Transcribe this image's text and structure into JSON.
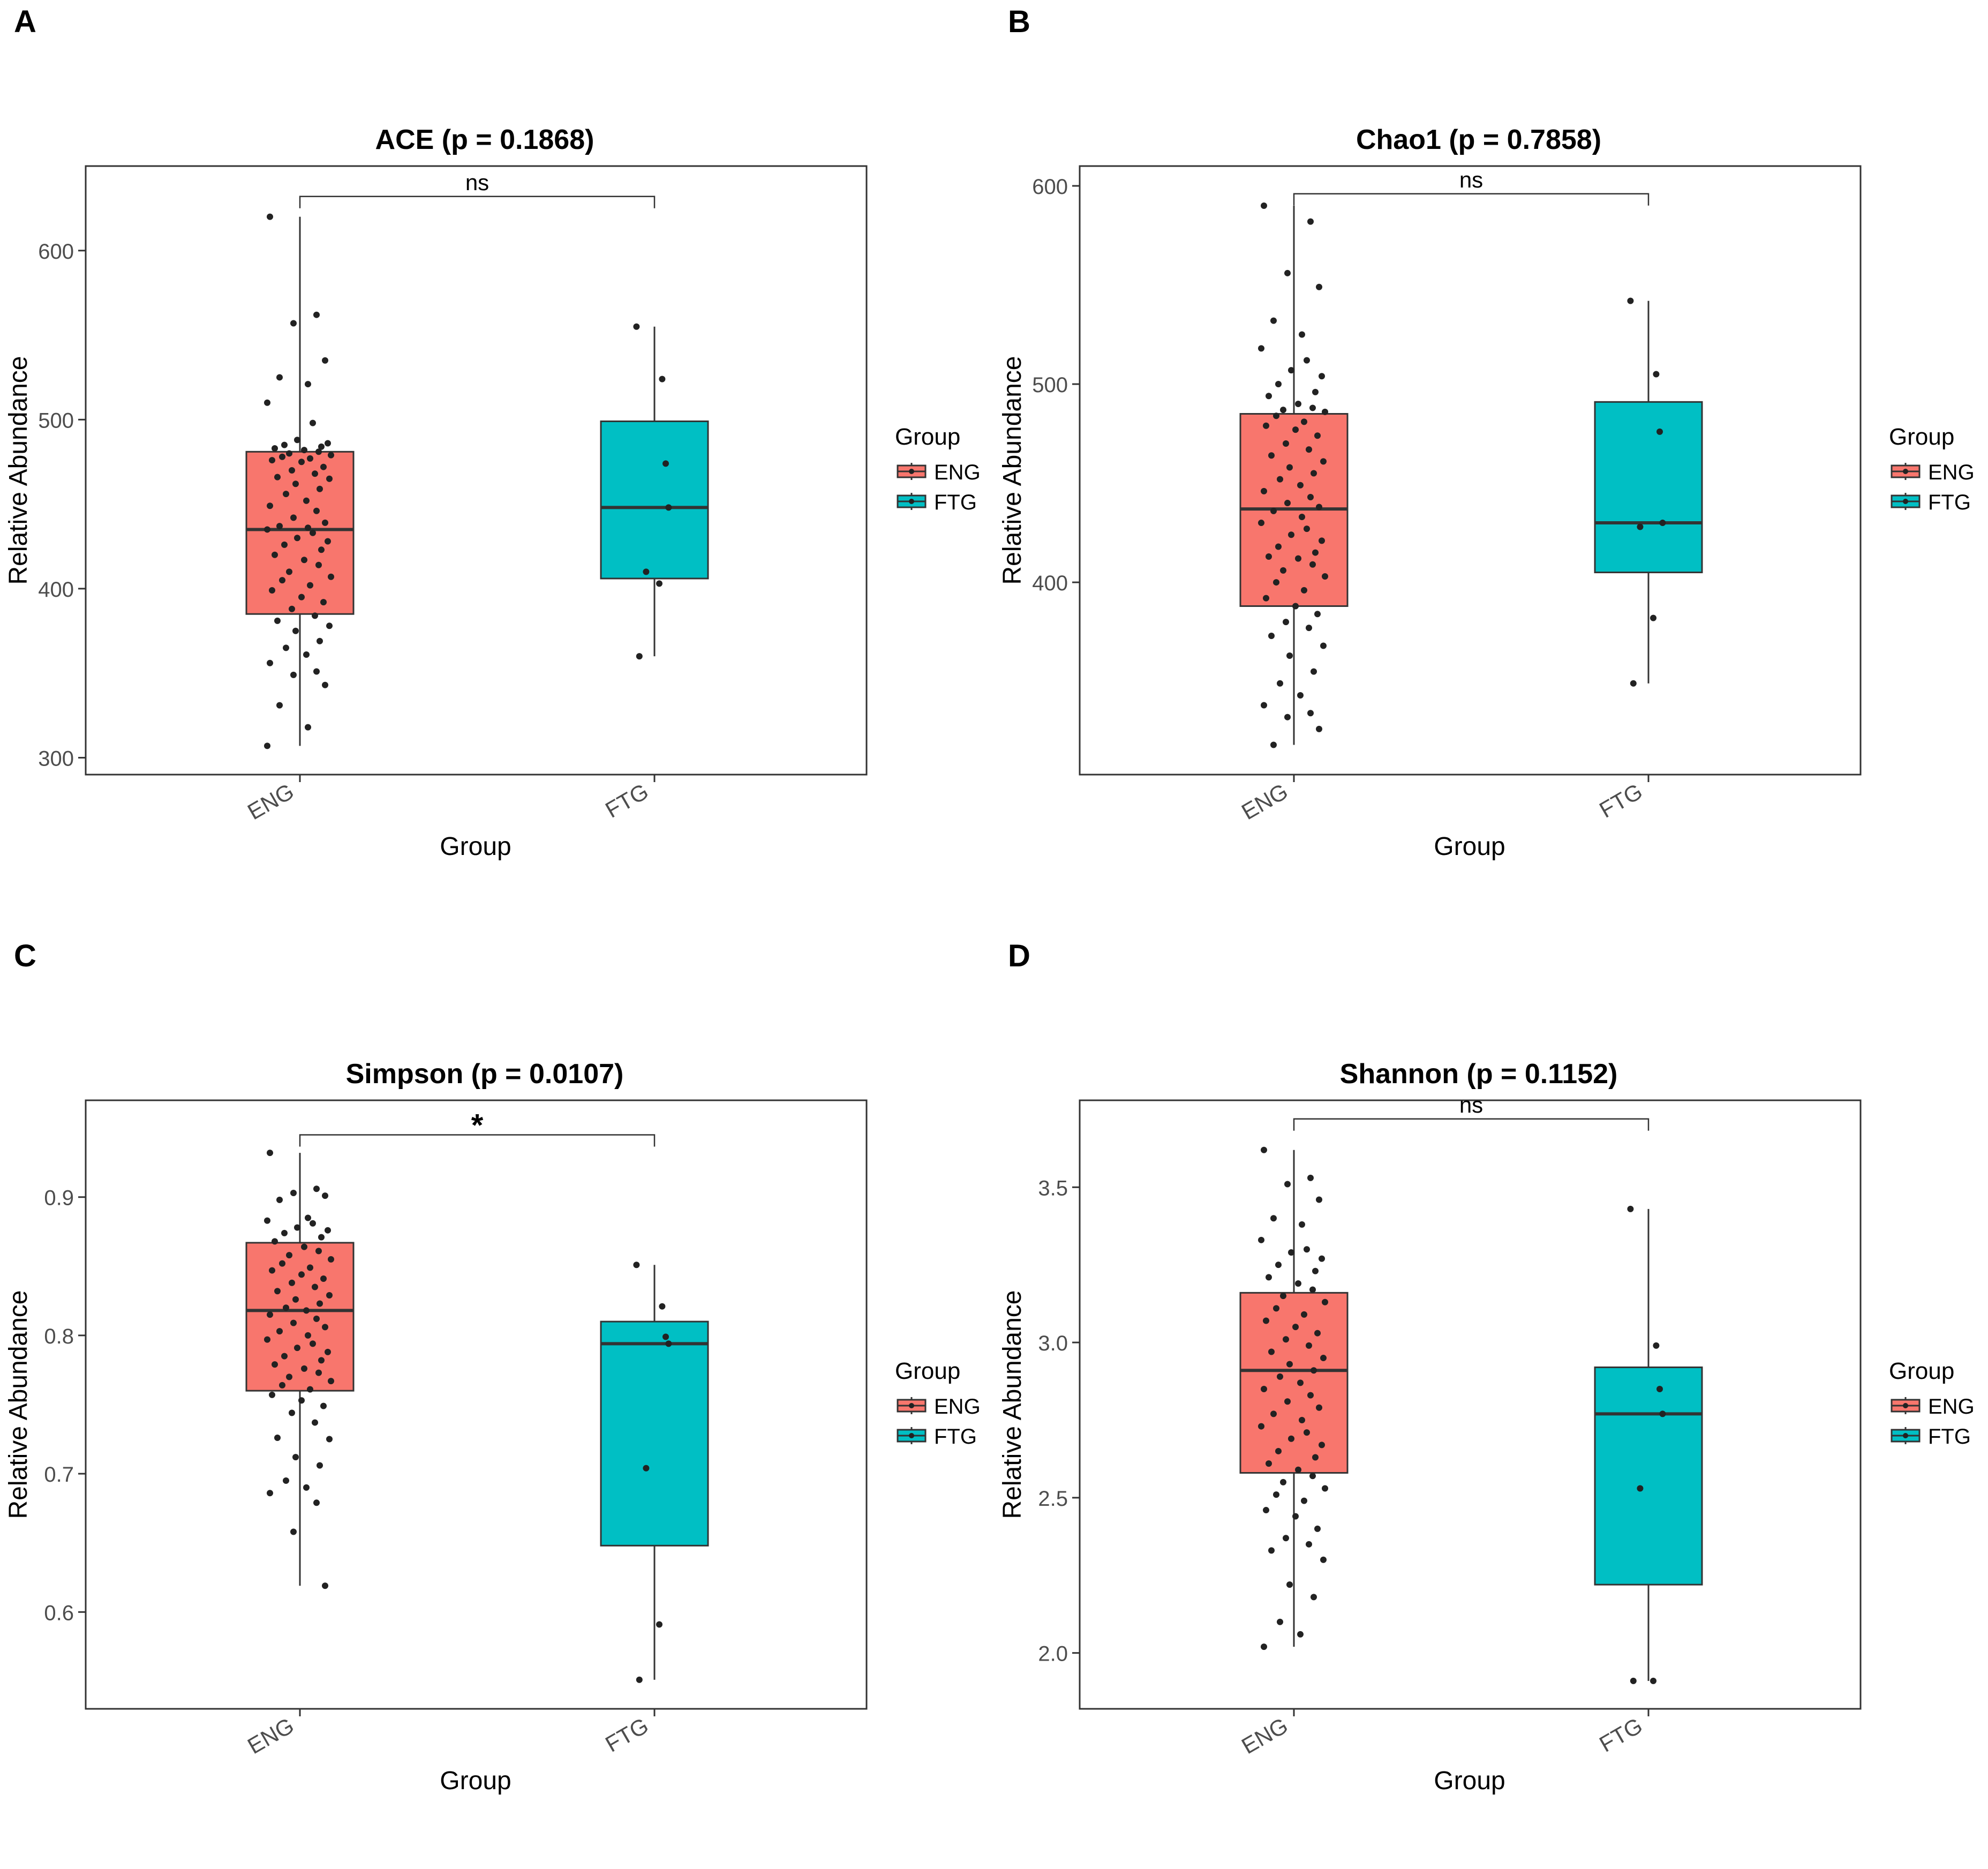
{
  "axis_titles": {
    "x": "Group",
    "y": "Relative Abundance"
  },
  "legend": {
    "title": "Group",
    "entries": [
      {
        "label": "ENG",
        "color": "#F8766D"
      },
      {
        "label": "FTG",
        "color": "#00BFC4"
      }
    ]
  },
  "chart_data": [
    {
      "panel": "A",
      "type": "boxplot",
      "title": "ACE (p = 0.1868)",
      "xlabel": "Group",
      "ylabel": "Relative Abundance",
      "ylim": [
        290,
        650
      ],
      "yticks": [
        300,
        400,
        500,
        600
      ],
      "categories": [
        "ENG",
        "FTG"
      ],
      "significance": "ns",
      "bracket_y": 632,
      "boxes": [
        {
          "group": "ENG",
          "color": "#F8766D",
          "lower_whisker": 307,
          "q1": 385,
          "median": 435,
          "q3": 481,
          "upper_whisker": 620,
          "points": [
            620,
            562,
            557,
            535,
            525,
            521,
            510,
            498,
            488,
            486,
            485,
            484,
            483,
            482,
            481,
            480,
            479,
            478,
            477,
            476,
            475,
            472,
            470,
            468,
            466,
            465,
            462,
            459,
            456,
            452,
            449,
            446,
            442,
            439,
            437,
            436,
            435,
            433,
            430,
            428,
            426,
            423,
            420,
            417,
            414,
            410,
            407,
            405,
            402,
            399,
            395,
            392,
            388,
            384,
            381,
            378,
            375,
            369,
            365,
            361,
            356,
            351,
            349,
            343,
            331,
            318,
            307
          ]
        },
        {
          "group": "FTG",
          "color": "#00BFC4",
          "lower_whisker": 360,
          "q1": 406,
          "median": 448,
          "q3": 499,
          "upper_whisker": 555,
          "points": [
            555,
            524,
            474,
            448,
            410,
            403,
            360
          ]
        }
      ]
    },
    {
      "panel": "B",
      "type": "boxplot",
      "title": "Chao1 (p = 0.7858)",
      "xlabel": "Group",
      "ylabel": "Relative Abundance",
      "ylim": [
        303,
        610
      ],
      "yticks": [
        400,
        500,
        600
      ],
      "categories": [
        "ENG",
        "FTG"
      ],
      "significance": "ns",
      "bracket_y": 596,
      "boxes": [
        {
          "group": "ENG",
          "color": "#F8766D",
          "lower_whisker": 318,
          "q1": 388,
          "median": 437,
          "q3": 485,
          "upper_whisker": 590,
          "points": [
            590,
            582,
            556,
            549,
            532,
            525,
            518,
            512,
            507,
            504,
            500,
            496,
            494,
            490,
            488,
            487,
            486,
            484,
            481,
            479,
            477,
            474,
            470,
            467,
            464,
            461,
            458,
            455,
            452,
            449,
            446,
            443,
            440,
            438,
            436,
            433,
            430,
            427,
            424,
            421,
            418,
            415,
            413,
            412,
            409,
            406,
            403,
            400,
            396,
            392,
            388,
            384,
            380,
            377,
            373,
            368,
            363,
            355,
            349,
            343,
            338,
            334,
            332,
            326,
            318
          ]
        },
        {
          "group": "FTG",
          "color": "#00BFC4",
          "lower_whisker": 349,
          "q1": 405,
          "median": 430,
          "q3": 491,
          "upper_whisker": 542,
          "points": [
            542,
            505,
            476,
            430,
            428,
            382,
            349
          ]
        }
      ]
    },
    {
      "panel": "C",
      "type": "boxplot",
      "title": "Simpson (p = 0.0107)",
      "xlabel": "Group",
      "ylabel": "Relative Abundance",
      "ylim": [
        0.53,
        0.97
      ],
      "yticks": [
        0.6,
        0.7,
        0.8,
        0.9
      ],
      "categories": [
        "ENG",
        "FTG"
      ],
      "significance": "*",
      "bracket_y": 0.945,
      "boxes": [
        {
          "group": "ENG",
          "color": "#F8766D",
          "lower_whisker": 0.619,
          "q1": 0.76,
          "median": 0.818,
          "q3": 0.867,
          "upper_whisker": 0.932,
          "points": [
            0.932,
            0.906,
            0.903,
            0.901,
            0.898,
            0.885,
            0.883,
            0.881,
            0.878,
            0.876,
            0.874,
            0.871,
            0.868,
            0.864,
            0.861,
            0.858,
            0.855,
            0.852,
            0.849,
            0.847,
            0.844,
            0.841,
            0.838,
            0.835,
            0.832,
            0.829,
            0.826,
            0.823,
            0.82,
            0.818,
            0.815,
            0.812,
            0.809,
            0.806,
            0.803,
            0.8,
            0.797,
            0.794,
            0.791,
            0.788,
            0.785,
            0.782,
            0.779,
            0.776,
            0.773,
            0.77,
            0.767,
            0.764,
            0.761,
            0.757,
            0.753,
            0.749,
            0.744,
            0.737,
            0.726,
            0.725,
            0.712,
            0.706,
            0.695,
            0.69,
            0.686,
            0.679,
            0.658,
            0.619
          ]
        },
        {
          "group": "FTG",
          "color": "#00BFC4",
          "lower_whisker": 0.551,
          "q1": 0.648,
          "median": 0.794,
          "q3": 0.81,
          "upper_whisker": 0.851,
          "points": [
            0.851,
            0.821,
            0.799,
            0.794,
            0.704,
            0.591,
            0.551
          ]
        }
      ]
    },
    {
      "panel": "D",
      "type": "boxplot",
      "title": "Shannon (p = 0.1152)",
      "xlabel": "Group",
      "ylabel": "Relative Abundance",
      "ylim": [
        1.82,
        3.78
      ],
      "yticks": [
        2.0,
        2.5,
        3.0,
        3.5
      ],
      "categories": [
        "ENG",
        "FTG"
      ],
      "significance": "ns",
      "bracket_y": 3.72,
      "boxes": [
        {
          "group": "ENG",
          "color": "#F8766D",
          "lower_whisker": 2.02,
          "q1": 2.58,
          "median": 2.91,
          "q3": 3.16,
          "upper_whisker": 3.62,
          "points": [
            3.62,
            3.53,
            3.51,
            3.46,
            3.4,
            3.38,
            3.33,
            3.3,
            3.29,
            3.27,
            3.25,
            3.23,
            3.21,
            3.19,
            3.17,
            3.15,
            3.13,
            3.11,
            3.09,
            3.07,
            3.05,
            3.03,
            3.01,
            2.99,
            2.97,
            2.95,
            2.93,
            2.91,
            2.89,
            2.87,
            2.85,
            2.83,
            2.81,
            2.79,
            2.77,
            2.75,
            2.73,
            2.71,
            2.69,
            2.67,
            2.65,
            2.63,
            2.61,
            2.59,
            2.57,
            2.55,
            2.53,
            2.51,
            2.49,
            2.46,
            2.44,
            2.4,
            2.37,
            2.35,
            2.33,
            2.3,
            2.22,
            2.18,
            2.1,
            2.06,
            2.02
          ]
        },
        {
          "group": "FTG",
          "color": "#00BFC4",
          "lower_whisker": 1.91,
          "q1": 2.22,
          "median": 2.77,
          "q3": 2.92,
          "upper_whisker": 3.43,
          "points": [
            3.43,
            2.99,
            2.85,
            2.77,
            2.53,
            1.91,
            1.91
          ]
        }
      ]
    }
  ]
}
